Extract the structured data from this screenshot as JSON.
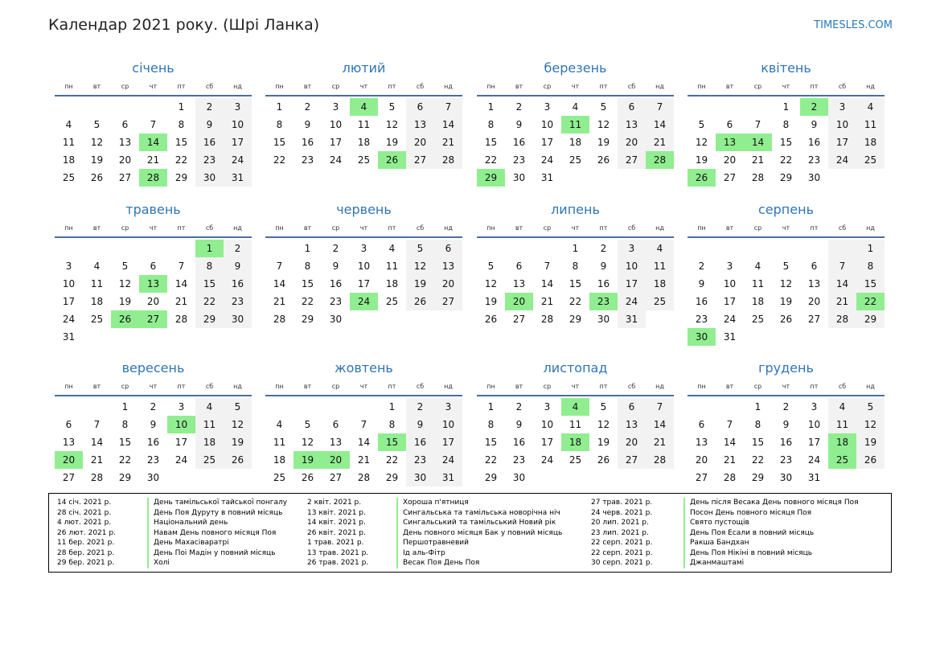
{
  "title": "Календар 2021 року. (Шрі Ланка)",
  "brand": "TIMESLES.COM",
  "weekdays": [
    "пн",
    "вт",
    "ср",
    "чт",
    "пт",
    "сб",
    "нд"
  ],
  "months": [
    {
      "name": "січень",
      "offset": 4,
      "days": 31,
      "holidays": [
        14,
        28
      ]
    },
    {
      "name": "лютий",
      "offset": 0,
      "days": 28,
      "holidays": [
        4,
        26
      ]
    },
    {
      "name": "березень",
      "offset": 0,
      "days": 31,
      "holidays": [
        11,
        28,
        29
      ]
    },
    {
      "name": "квітень",
      "offset": 3,
      "days": 30,
      "holidays": [
        2,
        13,
        14,
        26
      ]
    },
    {
      "name": "травень",
      "offset": 5,
      "days": 31,
      "holidays": [
        1,
        13,
        26,
        27
      ]
    },
    {
      "name": "червень",
      "offset": 1,
      "days": 30,
      "holidays": [
        24
      ]
    },
    {
      "name": "липень",
      "offset": 3,
      "days": 31,
      "holidays": [
        20,
        23
      ]
    },
    {
      "name": "серпень",
      "offset": 6,
      "days": 31,
      "holidays": [
        22,
        30
      ]
    },
    {
      "name": "вересень",
      "offset": 2,
      "days": 30,
      "holidays": [
        10,
        20
      ]
    },
    {
      "name": "жовтень",
      "offset": 4,
      "days": 31,
      "holidays": [
        15,
        19,
        20
      ]
    },
    {
      "name": "листопад",
      "offset": 0,
      "days": 30,
      "holidays": [
        4,
        18
      ]
    },
    {
      "name": "грудень",
      "offset": 2,
      "days": 31,
      "holidays": [
        18,
        25
      ]
    }
  ],
  "legend_columns": [
    [
      {
        "date": "14 січ. 2021 р.",
        "name": "День тамільської тайської понгалу"
      },
      {
        "date": "28 січ. 2021 р.",
        "name": "День Поя Дуруту в повний місяць"
      },
      {
        "date": "4 лют. 2021 р.",
        "name": "Національний день"
      },
      {
        "date": "26 лют. 2021 р.",
        "name": "Навам День повного місяця Поя"
      },
      {
        "date": "11 бер. 2021 р.",
        "name": "День Махасіваратрі"
      },
      {
        "date": "28 бер. 2021 р.",
        "name": "День Поі Мадін у повний місяць"
      },
      {
        "date": "29 бер. 2021 р.",
        "name": "Холі"
      }
    ],
    [
      {
        "date": "2 квіт. 2021 р.",
        "name": "Хороша п'ятниця"
      },
      {
        "date": "13 квіт. 2021 р.",
        "name": "Сингальська та тамільська новорічна ніч"
      },
      {
        "date": "14 квіт. 2021 р.",
        "name": "Сингальський та тамільський Новий рік"
      },
      {
        "date": "26 квіт. 2021 р.",
        "name": "День повного місяця Бак у повний місяць"
      },
      {
        "date": "1 трав. 2021 р.",
        "name": "Першотравневий"
      },
      {
        "date": "13 трав. 2021 р.",
        "name": "Ід аль-Фітр"
      },
      {
        "date": "26 трав. 2021 р.",
        "name": "Весак Поя День Поя"
      }
    ],
    [
      {
        "date": "27 трав. 2021 р.",
        "name": "День після Весака День повного місяця Поя"
      },
      {
        "date": "24 черв. 2021 р.",
        "name": "Посон День повного місяця Поя"
      },
      {
        "date": "20 лип. 2021 р.",
        "name": "Свято пустощів"
      },
      {
        "date": "23 лип. 2021 р.",
        "name": "День Поя Есали в повний місяць"
      },
      {
        "date": "22 серп. 2021 р.",
        "name": "Ракша Бандхан"
      },
      {
        "date": "22 серп. 2021 р.",
        "name": "День Поя Нікіні в повний місяць"
      },
      {
        "date": "30 серп. 2021 р.",
        "name": "Джанмаштамі"
      }
    ]
  ],
  "colors": {
    "accent": "#2f75b5",
    "holiday": "#90ee90",
    "weekend": "#f2f2f2"
  }
}
